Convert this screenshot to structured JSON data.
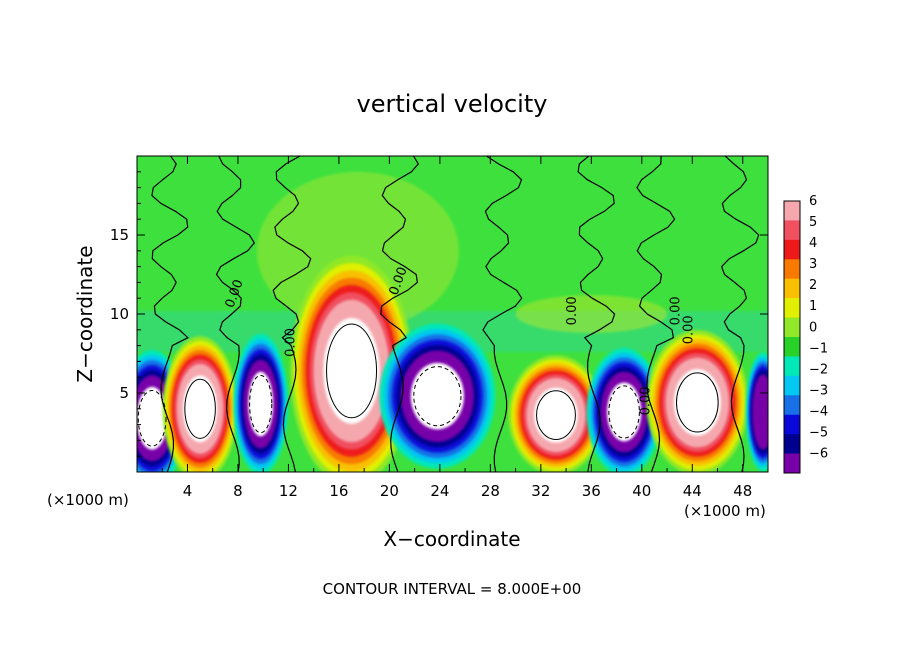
{
  "chart_data": {
    "type": "heatmap",
    "title": "vertical velocity",
    "xlabel": "X−coordinate",
    "ylabel": "Z−coordinate",
    "x_unit_left": "(×1000 m)",
    "x_unit_right": "(×1000 m)",
    "footer": "CONTOUR INTERVAL = 8.000E+00",
    "xlim": [
      0,
      50
    ],
    "ylim": [
      0,
      20
    ],
    "x_ticks": [
      4,
      8,
      12,
      16,
      20,
      24,
      28,
      32,
      36,
      40,
      44,
      48
    ],
    "x_tick_labels": [
      "4",
      "8",
      "12",
      "16",
      "20",
      "24",
      "28",
      "32",
      "36",
      "40",
      "44",
      "48"
    ],
    "y_ticks": [
      5,
      10,
      15
    ],
    "y_tick_labels": [
      "5",
      "10",
      "15"
    ],
    "colorbar": {
      "range": [
        -6,
        6
      ],
      "tick_labels": [
        "6",
        "5",
        "4",
        "3",
        "2",
        "1",
        "0",
        "−1",
        "−2",
        "−3",
        "−4",
        "−5",
        "−6"
      ],
      "colors": [
        "#f4a8ae",
        "#f05060",
        "#ee1a1a",
        "#f87a00",
        "#f8c000",
        "#e0f000",
        "#90e828",
        "#28d028",
        "#00e8b8",
        "#00c8f0",
        "#1870e8",
        "#0808d8",
        "#000090",
        "#7800a8"
      ]
    },
    "contour_labels": [
      "0.00",
      "0.00",
      "0.00",
      "0.00",
      "0.00",
      "0.00",
      "0.00"
    ],
    "cells": [
      {
        "x": 1.2,
        "z": 3.4,
        "rx": 2.0,
        "rz": 3.2,
        "w": -9
      },
      {
        "x": 5.0,
        "z": 4.0,
        "rx": 2.2,
        "rz": 3.4,
        "w": 7
      },
      {
        "x": 9.8,
        "z": 4.3,
        "rx": 1.6,
        "rz": 3.3,
        "w": -7
      },
      {
        "x": 17.0,
        "z": 6.4,
        "rx": 3.6,
        "rz": 5.4,
        "w": 12
      },
      {
        "x": 23.8,
        "z": 4.8,
        "rx": 3.4,
        "rz": 3.4,
        "w": -12
      },
      {
        "x": 33.2,
        "z": 3.6,
        "rx": 2.8,
        "rz": 2.8,
        "w": 7
      },
      {
        "x": 38.6,
        "z": 3.8,
        "rx": 2.2,
        "rz": 3.0,
        "w": -9
      },
      {
        "x": 44.4,
        "z": 4.4,
        "rx": 3.0,
        "rz": 3.4,
        "w": 10
      },
      {
        "x": 49.6,
        "z": 3.8,
        "rx": 1.0,
        "rz": 2.8,
        "w": -6
      }
    ]
  }
}
